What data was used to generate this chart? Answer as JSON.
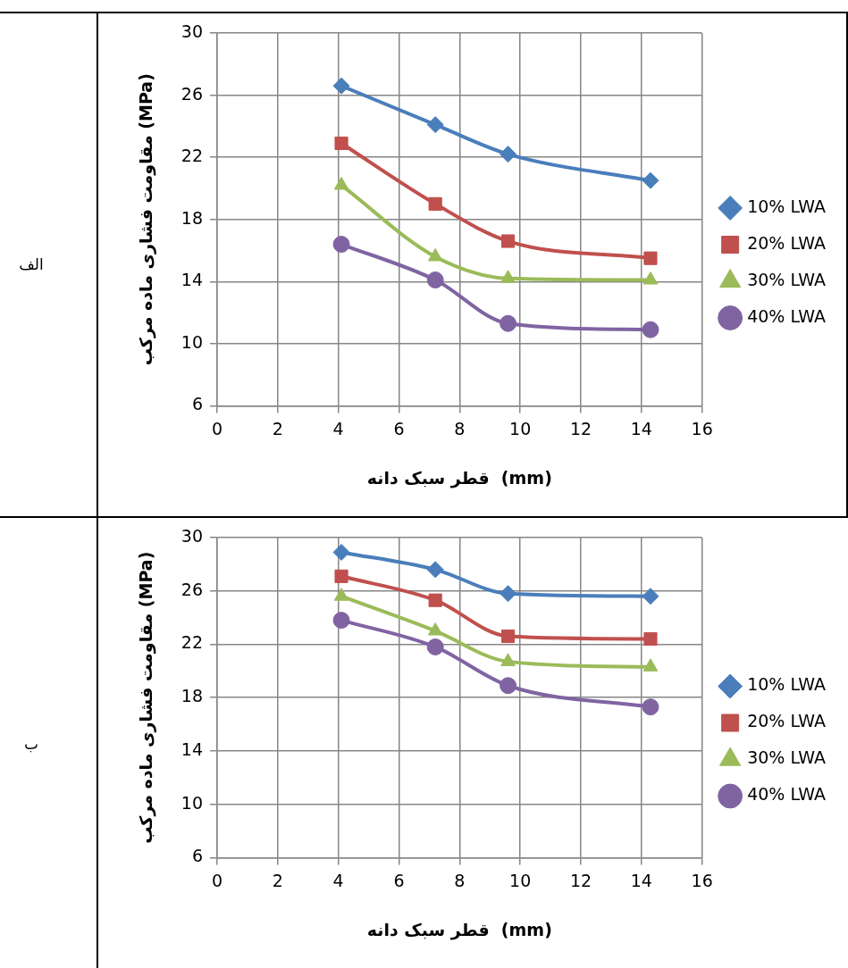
{
  "chart_data": [
    {
      "type": "line",
      "xlabel": "قطر سبک دانه  (mm)",
      "ylabel": "مقاومت فشاری ماده مرکب (MPa)",
      "annotations": [
        "الف"
      ],
      "x": [
        4.1,
        7.2,
        9.6,
        14.3
      ],
      "xlim": [
        0,
        16
      ],
      "xticks": [
        0,
        2,
        4,
        6,
        8,
        10,
        12,
        14,
        16
      ],
      "ylim": [
        6,
        30
      ],
      "yticks": [
        6,
        10,
        14,
        18,
        22,
        26,
        30
      ],
      "grid": true,
      "legend": "right",
      "series": [
        {
          "name": "10% LWA",
          "color": "#4a7ebb",
          "marker": "diamond",
          "values": [
            26.6,
            24.1,
            22.2,
            20.5
          ]
        },
        {
          "name": "20% LWA",
          "color": "#c0504d",
          "marker": "square",
          "values": [
            22.9,
            19.0,
            16.6,
            15.5
          ]
        },
        {
          "name": "30% LWA",
          "color": "#9bbb59",
          "marker": "triangle",
          "values": [
            20.2,
            15.6,
            14.2,
            14.1
          ]
        },
        {
          "name": "40% LWA",
          "color": "#8064a2",
          "marker": "circle",
          "values": [
            16.4,
            14.1,
            11.3,
            10.9
          ]
        }
      ]
    },
    {
      "type": "line",
      "xlabel": "قطر سبک دانه  (mm)",
      "ylabel": "مقاومت فشاری ماده مرکب (MPa)",
      "annotations": [
        "ب"
      ],
      "x": [
        4.1,
        7.2,
        9.6,
        14.3
      ],
      "xlim": [
        0,
        16
      ],
      "xticks": [
        0,
        2,
        4,
        6,
        8,
        10,
        12,
        14,
        16
      ],
      "ylim": [
        6,
        30
      ],
      "yticks": [
        6,
        10,
        14,
        18,
        22,
        26,
        30
      ],
      "grid": true,
      "legend": "right",
      "series": [
        {
          "name": "10% LWA",
          "color": "#4a7ebb",
          "marker": "diamond",
          "values": [
            28.9,
            27.6,
            25.8,
            25.6
          ]
        },
        {
          "name": "20% LWA",
          "color": "#c0504d",
          "marker": "square",
          "values": [
            27.1,
            25.3,
            22.6,
            22.4
          ]
        },
        {
          "name": "30% LWA",
          "color": "#9bbb59",
          "marker": "triangle",
          "values": [
            25.6,
            23.0,
            20.7,
            20.3
          ]
        },
        {
          "name": "40% LWA",
          "color": "#8064a2",
          "marker": "circle",
          "values": [
            23.8,
            21.8,
            18.9,
            17.3
          ]
        }
      ]
    }
  ]
}
